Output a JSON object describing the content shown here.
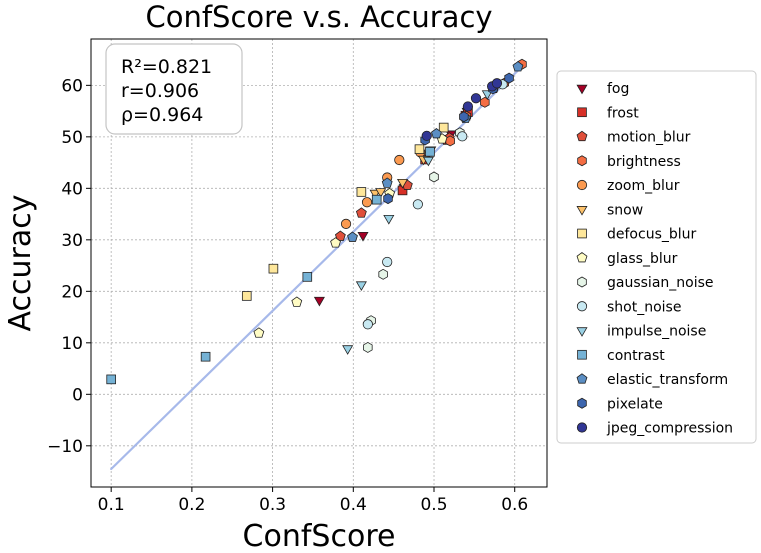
{
  "chart_data": {
    "type": "scatter",
    "title": "ConfScore  v.s.  Accuracy",
    "xlabel": "ConfScore",
    "ylabel": "Accuracy",
    "xlim": [
      0.075,
      0.64
    ],
    "ylim": [
      -18,
      69
    ],
    "x_ticks": [
      0.1,
      0.2,
      0.3,
      0.4,
      0.5,
      0.6
    ],
    "x_tick_labels": [
      "0.1",
      "0.2",
      "0.3",
      "0.4",
      "0.5",
      "0.6"
    ],
    "y_ticks": [
      -10,
      0,
      10,
      20,
      30,
      40,
      50,
      60
    ],
    "y_tick_labels": [
      "−10",
      "0",
      "10",
      "20",
      "30",
      "40",
      "50",
      "60"
    ],
    "grid": true,
    "stats": {
      "r2": "R²=0.821",
      "r": "r=0.906",
      "rho": "ρ=0.964"
    },
    "fit_line": {
      "x": [
        0.1,
        0.61
      ],
      "y": [
        -14.5,
        63.8
      ],
      "color": "#a7b9ea"
    },
    "legend_position": "right",
    "series": [
      {
        "name": "fog",
        "marker": "triangle-down",
        "color": "#a50026",
        "points": [
          [
            0.358,
            18.3
          ],
          [
            0.412,
            30.9
          ],
          [
            0.463,
            40.2
          ],
          [
            0.521,
            50.6
          ],
          [
            0.541,
            55.0
          ]
        ]
      },
      {
        "name": "frost",
        "marker": "square",
        "color": "#d73027",
        "points": [
          [
            0.461,
            39.6
          ],
          [
            0.489,
            45.6
          ],
          [
            0.517,
            49.4
          ],
          [
            0.539,
            54.1
          ],
          [
            0.542,
            54.8
          ]
        ]
      },
      {
        "name": "motion_blur",
        "marker": "pentagon",
        "color": "#e04f3a",
        "points": [
          [
            0.384,
            30.7
          ],
          [
            0.41,
            35.2
          ],
          [
            0.467,
            40.6
          ],
          [
            0.519,
            49.8
          ],
          [
            0.574,
            59.4
          ]
        ]
      },
      {
        "name": "brightness",
        "marker": "hexagon",
        "color": "#f46d43",
        "points": [
          [
            0.52,
            49.2
          ],
          [
            0.54,
            54.0
          ],
          [
            0.563,
            56.7
          ],
          [
            0.587,
            60.4
          ],
          [
            0.609,
            64.1
          ]
        ]
      },
      {
        "name": "zoom_blur",
        "marker": "circle",
        "color": "#fb9a50",
        "points": [
          [
            0.391,
            33.1
          ],
          [
            0.417,
            37.3
          ],
          [
            0.442,
            42.1
          ],
          [
            0.457,
            45.5
          ],
          [
            0.483,
            47.0
          ]
        ]
      },
      {
        "name": "snow",
        "marker": "triangle-down",
        "color": "#fdc26b",
        "points": [
          [
            0.427,
            39.1
          ],
          [
            0.434,
            39.4
          ],
          [
            0.461,
            41.2
          ],
          [
            0.487,
            45.7
          ],
          [
            0.496,
            47.5
          ]
        ]
      },
      {
        "name": "defocus_blur",
        "marker": "square",
        "color": "#fee79b",
        "points": [
          [
            0.268,
            19.1
          ],
          [
            0.301,
            24.4
          ],
          [
            0.41,
            39.3
          ],
          [
            0.482,
            47.6
          ],
          [
            0.512,
            51.8
          ]
        ]
      },
      {
        "name": "glass_blur",
        "marker": "pentagon",
        "color": "#fffcc4",
        "points": [
          [
            0.283,
            11.9
          ],
          [
            0.33,
            17.9
          ],
          [
            0.378,
            29.4
          ],
          [
            0.445,
            39.0
          ],
          [
            0.51,
            49.6
          ]
        ]
      },
      {
        "name": "gaussian_noise",
        "marker": "hexagon",
        "color": "#e6f5e8",
        "points": [
          [
            0.418,
            9.1
          ],
          [
            0.422,
            14.3
          ],
          [
            0.437,
            23.3
          ],
          [
            0.5,
            42.2
          ],
          [
            0.532,
            50.8
          ]
        ]
      },
      {
        "name": "shot_noise",
        "marker": "circle",
        "color": "#c8e9f2",
        "points": [
          [
            0.418,
            13.6
          ],
          [
            0.442,
            25.7
          ],
          [
            0.48,
            36.9
          ],
          [
            0.535,
            50.1
          ],
          [
            0.585,
            60.2
          ]
        ]
      },
      {
        "name": "impulse_noise",
        "marker": "triangle-down",
        "color": "#9ad1e4",
        "points": [
          [
            0.393,
            8.9
          ],
          [
            0.41,
            21.3
          ],
          [
            0.444,
            34.2
          ],
          [
            0.493,
            45.5
          ],
          [
            0.566,
            58.4
          ]
        ]
      },
      {
        "name": "contrast",
        "marker": "square",
        "color": "#75b2d5",
        "points": [
          [
            0.1,
            2.9
          ],
          [
            0.217,
            7.3
          ],
          [
            0.343,
            22.8
          ],
          [
            0.429,
            37.8
          ],
          [
            0.495,
            47.1
          ]
        ]
      },
      {
        "name": "elastic_transform",
        "marker": "pentagon",
        "color": "#5b8ec3",
        "points": [
          [
            0.399,
            30.5
          ],
          [
            0.442,
            41.0
          ],
          [
            0.503,
            50.6
          ],
          [
            0.539,
            53.6
          ],
          [
            0.604,
            63.6
          ]
        ]
      },
      {
        "name": "pixelate",
        "marker": "hexagon",
        "color": "#3d66ae",
        "points": [
          [
            0.443,
            38.0
          ],
          [
            0.489,
            49.4
          ],
          [
            0.537,
            53.9
          ],
          [
            0.573,
            59.3
          ],
          [
            0.593,
            61.4
          ]
        ]
      },
      {
        "name": "jpeg_compression",
        "marker": "circle",
        "color": "#313695",
        "points": [
          [
            0.491,
            50.2
          ],
          [
            0.542,
            55.9
          ],
          [
            0.552,
            57.5
          ],
          [
            0.572,
            59.8
          ],
          [
            0.578,
            60.4
          ]
        ]
      }
    ]
  }
}
